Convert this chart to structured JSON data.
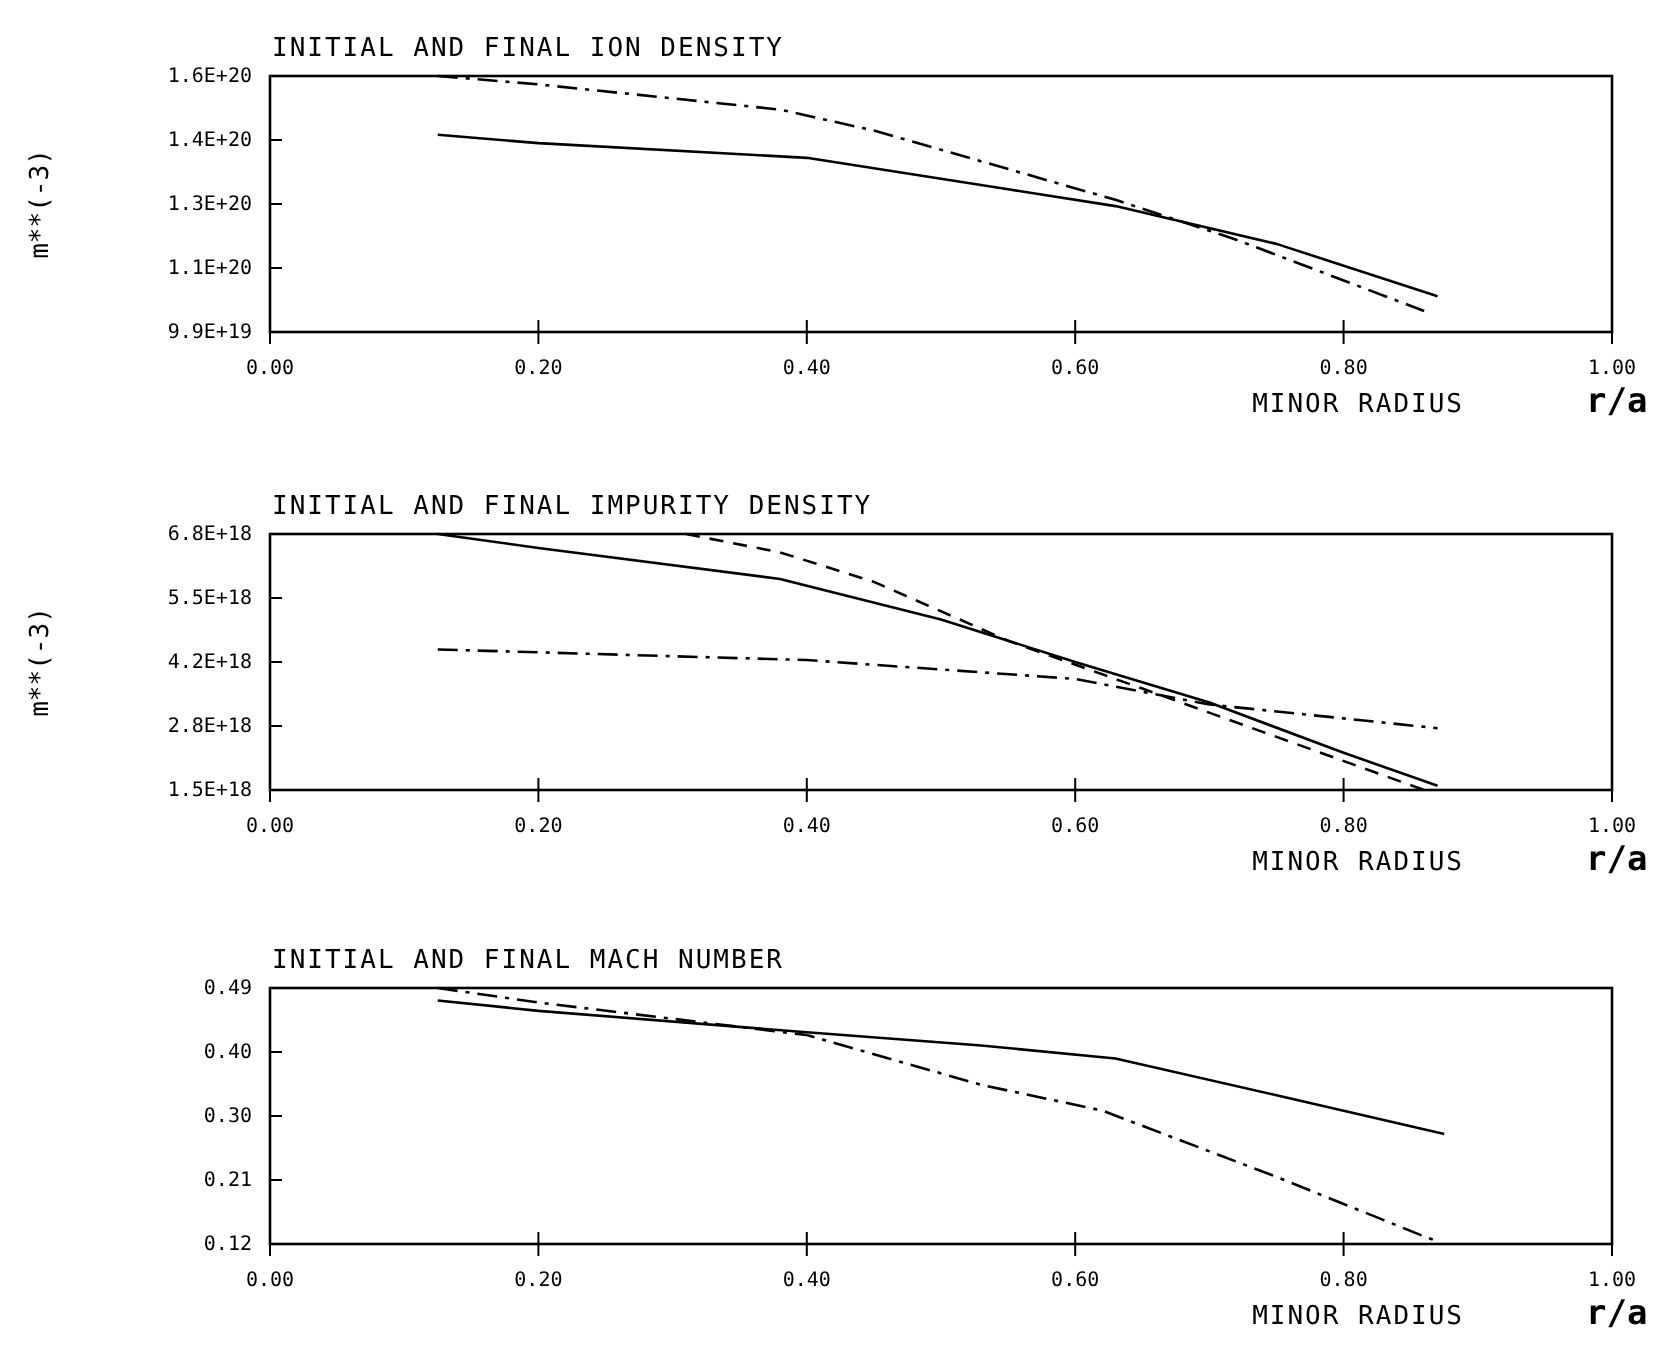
{
  "chart_data": [
    {
      "type": "line",
      "title": "INITIAL AND FINAL ION DENSITY",
      "xlabel": "MINOR RADIUS",
      "ylabel": "m**(-3)",
      "annotations": [
        "r/a"
      ],
      "xlim": [
        0,
        1
      ],
      "ylim": [
        9.9e+19,
        1.6e+20
      ],
      "xticks": [
        {
          "value": 0,
          "label": "0.00"
        },
        {
          "value": 0.2,
          "label": "0.20"
        },
        {
          "value": 0.4,
          "label": "0.40"
        },
        {
          "value": 0.6,
          "label": "0.60"
        },
        {
          "value": 0.8,
          "label": "0.80"
        },
        {
          "value": 1,
          "label": "1.00"
        }
      ],
      "yticks": [
        {
          "value": 9.9e+19,
          "label": "9.9E+19"
        },
        {
          "value": 1.1425e+20,
          "label": "1.1E+20"
        },
        {
          "value": 1.295e+20,
          "label": "1.3E+20"
        },
        {
          "value": 1.4475e+20,
          "label": "1.4E+20"
        },
        {
          "value": 1.6e+20,
          "label": "1.6E+20"
        }
      ],
      "grid": false,
      "marker": "none",
      "series": [
        {
          "color": "#000000",
          "line_style": "solid",
          "x": [
            0.125,
            0.2,
            0.4,
            0.55,
            0.63,
            0.75,
            0.87
          ],
          "values": [
            1.46e+20,
            1.44e+20,
            1.405e+20,
            1.33e+20,
            1.29e+20,
            1.2e+20,
            1.075e+20
          ]
        },
        {
          "color": "#000000",
          "line_style": "dashdot",
          "x": [
            0.125,
            0.2,
            0.38,
            0.45,
            0.63,
            0.72,
            0.86
          ],
          "values": [
            1.6e+20,
            1.58e+20,
            1.52e+20,
            1.47e+20,
            1.305e+20,
            1.21e+20,
            1.04e+20
          ]
        }
      ]
    },
    {
      "type": "line",
      "title": "INITIAL AND FINAL IMPURITY DENSITY",
      "xlabel": "MINOR RADIUS",
      "ylabel": "m**(-3)",
      "annotations": [
        "r/a"
      ],
      "xlim": [
        0,
        1
      ],
      "ylim": [
        1.5e+18,
        6.8e+18
      ],
      "xticks": [
        {
          "value": 0,
          "label": "0.00"
        },
        {
          "value": 0.2,
          "label": "0.20"
        },
        {
          "value": 0.4,
          "label": "0.40"
        },
        {
          "value": 0.6,
          "label": "0.60"
        },
        {
          "value": 0.8,
          "label": "0.80"
        },
        {
          "value": 1,
          "label": "1.00"
        }
      ],
      "yticks": [
        {
          "value": 1.5e+18,
          "label": "1.5E+18"
        },
        {
          "value": 2.825e+18,
          "label": "2.8E+18"
        },
        {
          "value": 4.15e+18,
          "label": "4.2E+18"
        },
        {
          "value": 5.475e+18,
          "label": "5.5E+18"
        },
        {
          "value": 6.8e+18,
          "label": "6.8E+18"
        }
      ],
      "grid": false,
      "marker": "none",
      "series": [
        {
          "color": "#000000",
          "line_style": "solid",
          "x": [
            0.125,
            0.2,
            0.38,
            0.5,
            0.6,
            0.7,
            0.8,
            0.87
          ],
          "values": [
            6.8e+18,
            6.51e+18,
            5.87e+18,
            5.03e+18,
            4.15e+18,
            3.31e+18,
            2.27e+18,
            1.59e+18
          ]
        },
        {
          "color": "#000000",
          "line_style": "dashed",
          "x": [
            0.31,
            0.38,
            0.45,
            0.55,
            0.65,
            0.75,
            0.86
          ],
          "values": [
            6.8e+18,
            6.42e+18,
            5.81e+18,
            4.59e+18,
            3.6e+18,
            2.6e+18,
            1.5e+18
          ]
        },
        {
          "color": "#000000",
          "line_style": "dashdot",
          "x": [
            0.125,
            0.4,
            0.6,
            0.7,
            0.87
          ],
          "values": [
            4.41e+18,
            4.19e+18,
            3.8e+18,
            3.27e+18,
            2.78e+18
          ]
        }
      ]
    },
    {
      "type": "line",
      "title": "INITIAL AND FINAL MACH NUMBER",
      "xlabel": "MINOR RADIUS",
      "annotations": [
        "r/a"
      ],
      "xlim": [
        0,
        1
      ],
      "ylim": [
        0.12,
        0.49
      ],
      "xticks": [
        {
          "value": 0,
          "label": "0.00"
        },
        {
          "value": 0.2,
          "label": "0.20"
        },
        {
          "value": 0.4,
          "label": "0.40"
        },
        {
          "value": 0.6,
          "label": "0.60"
        },
        {
          "value": 0.8,
          "label": "0.80"
        },
        {
          "value": 1,
          "label": "1.00"
        }
      ],
      "yticks": [
        {
          "value": 0.12,
          "label": "0.12"
        },
        {
          "value": 0.2125,
          "label": "0.21"
        },
        {
          "value": 0.305,
          "label": "0.30"
        },
        {
          "value": 0.3975,
          "label": "0.40"
        },
        {
          "value": 0.49,
          "label": "0.49"
        }
      ],
      "grid": false,
      "marker": "none",
      "series": [
        {
          "color": "#000000",
          "line_style": "solid",
          "x": [
            0.125,
            0.2,
            0.4,
            0.53,
            0.63,
            0.75,
            0.875
          ],
          "values": [
            0.472,
            0.457,
            0.426,
            0.407,
            0.388,
            0.335,
            0.279
          ]
        },
        {
          "color": "#000000",
          "line_style": "dashdot",
          "x": [
            0.125,
            0.2,
            0.4,
            0.53,
            0.62,
            0.75,
            0.86,
            0.87
          ],
          "values": [
            0.49,
            0.469,
            0.422,
            0.35,
            0.313,
            0.217,
            0.131,
            0.124
          ]
        }
      ]
    }
  ]
}
